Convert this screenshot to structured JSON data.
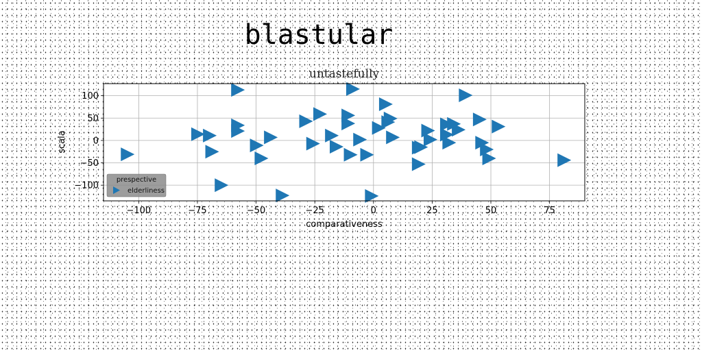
{
  "suptitle": "blastular",
  "chart_data": {
    "type": "scatter",
    "title": "untastefully",
    "xlabel": "comparativeness",
    "ylabel": "scala",
    "xlim": [
      -115,
      90
    ],
    "ylim": [
      -135,
      127
    ],
    "xticks": [
      -100,
      -75,
      -50,
      -25,
      0,
      25,
      50,
      75
    ],
    "yticks": [
      -100,
      -50,
      0,
      50,
      100
    ],
    "xtick_labels": [
      "−100",
      "−75",
      "−50",
      "−25",
      "0",
      "25",
      "50",
      "75"
    ],
    "ytick_labels": [
      "−100",
      "−50",
      "0",
      "50",
      "100"
    ],
    "grid": true,
    "marker": "triangle-right",
    "legend": {
      "title": "prespective",
      "placement": "lower-left"
    },
    "series": [
      {
        "name": "elderliness",
        "color": "#1f77b4",
        "points": [
          [
            -105,
            -31
          ],
          [
            -75,
            14
          ],
          [
            -70,
            11
          ],
          [
            -69,
            -25
          ],
          [
            -65,
            -100
          ],
          [
            -58,
            113
          ],
          [
            -58,
            34
          ],
          [
            -58,
            21
          ],
          [
            -50,
            -11
          ],
          [
            -48,
            -40
          ],
          [
            -44,
            7
          ],
          [
            -39,
            -123
          ],
          [
            -29,
            43
          ],
          [
            -26,
            -7
          ],
          [
            -23,
            59
          ],
          [
            -18,
            11
          ],
          [
            -16,
            -14
          ],
          [
            -11,
            56
          ],
          [
            -11,
            38
          ],
          [
            -10,
            -32
          ],
          [
            -9,
            115
          ],
          [
            -6,
            2
          ],
          [
            -3,
            -32
          ],
          [
            -1,
            -124
          ],
          [
            2,
            28
          ],
          [
            5,
            81
          ],
          [
            6,
            41
          ],
          [
            7,
            49
          ],
          [
            8,
            7
          ],
          [
            19,
            -16
          ],
          [
            19,
            -53
          ],
          [
            20,
            -15
          ],
          [
            23,
            22
          ],
          [
            24,
            2
          ],
          [
            31,
            36
          ],
          [
            31,
            13
          ],
          [
            32,
            -5
          ],
          [
            34,
            37
          ],
          [
            36,
            24
          ],
          [
            39,
            101
          ],
          [
            45,
            47
          ],
          [
            46,
            -5
          ],
          [
            48,
            -20
          ],
          [
            49,
            -40
          ],
          [
            53,
            31
          ],
          [
            81,
            -44
          ]
        ]
      }
    ]
  }
}
